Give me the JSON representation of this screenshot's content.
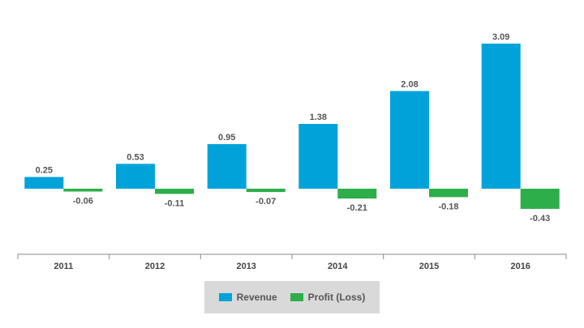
{
  "chart_data": {
    "type": "bar",
    "categories": [
      "2011",
      "2012",
      "2013",
      "2014",
      "2015",
      "2016"
    ],
    "series": [
      {
        "name": "Revenue",
        "color": "#00a3d9",
        "values": [
          0.25,
          0.53,
          0.95,
          1.38,
          2.08,
          3.09
        ]
      },
      {
        "name": "Profit (Loss)",
        "color": "#2eae4a",
        "values": [
          -0.06,
          -0.11,
          -0.07,
          -0.21,
          -0.18,
          -0.43
        ]
      }
    ],
    "value_labels": {
      "Revenue": [
        "0.25",
        "0.53",
        "0.95",
        "1.38",
        "2.08",
        "3.09"
      ],
      "Profit (Loss)": [
        "-0.06",
        "-0.11",
        "-0.07",
        "-0.21",
        "-0.18",
        "-0.43"
      ]
    },
    "title": "",
    "xlabel": "",
    "ylabel": "",
    "ylim": [
      -1.4,
      3.4
    ],
    "grid": false,
    "legend_position": "bottom-center"
  }
}
